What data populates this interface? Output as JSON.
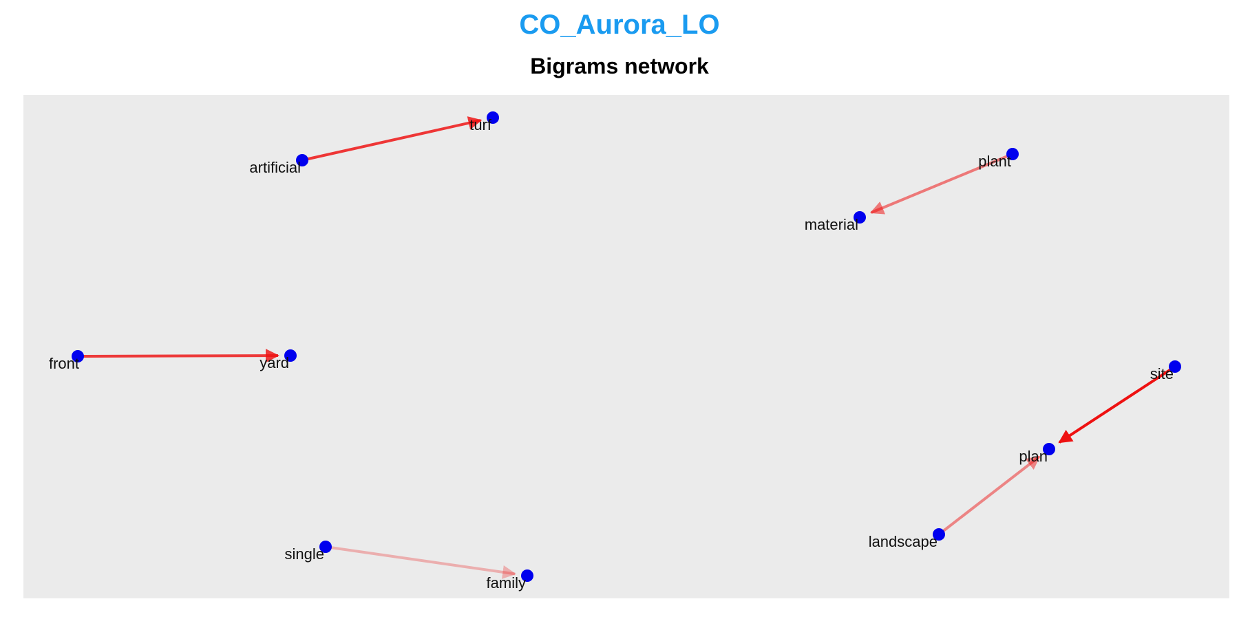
{
  "title": "CO_Aurora_LO",
  "subtitle": "Bigrams network",
  "colors": {
    "title": "#1a9bf0",
    "panel": "#ebebeb",
    "node": "#0000ee",
    "edge": "#ee1111"
  },
  "chart_data": {
    "type": "network",
    "directed": true,
    "nodes": [
      "artificial",
      "turf",
      "plant",
      "material",
      "front",
      "yard",
      "site",
      "plan",
      "landscape",
      "single",
      "family"
    ],
    "edges": [
      {
        "from": "artificial",
        "to": "turf",
        "strength": 0.8
      },
      {
        "from": "plant",
        "to": "material",
        "strength": 0.45
      },
      {
        "from": "front",
        "to": "yard",
        "strength": 0.78
      },
      {
        "from": "site",
        "to": "plan",
        "strength": 1.0
      },
      {
        "from": "landscape",
        "to": "plan",
        "strength": 0.38
      },
      {
        "from": "single",
        "to": "family",
        "strength": 0.15
      }
    ]
  }
}
